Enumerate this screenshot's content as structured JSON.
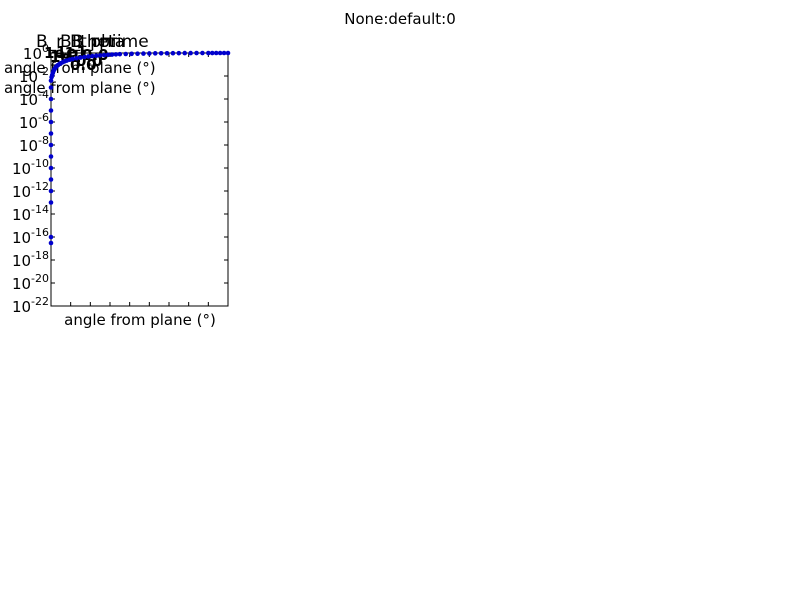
{
  "figure": {
    "suptitle": "None:default:0"
  },
  "overlap": {
    "titles": [
      "B_r",
      "B_phi",
      "B_theta",
      "B_rprime"
    ],
    "garbled_glyphs": [
      "1e1",
      "1e1",
      "1e1",
      "0.0",
      "0.0",
      "0.0"
    ],
    "ylabel_lines": [
      "angle from plane (°)",
      "angle from plane (°)"
    ]
  },
  "chart_data": {
    "type": "scatter",
    "title": "",
    "xlabel": "angle from plane (°)",
    "ylabel": "",
    "yscale": "log",
    "ylim_exponents": [
      -22,
      0
    ],
    "ytick_exponents": [
      0,
      -2,
      -4,
      -6,
      -8,
      -10,
      -12,
      -14,
      -16,
      -18,
      -20,
      -22
    ],
    "xlim": [
      0,
      90
    ],
    "grid": false,
    "colors": {
      "series": "#0000cc",
      "axes": "#000000"
    },
    "series": [
      {
        "x": [
          0.0,
          0.0,
          0.0,
          0.0,
          0.0,
          0.0,
          0.0,
          0.0,
          0.0,
          0.0,
          0.0,
          0.0,
          0.0,
          0.0,
          0.3,
          0.6,
          0.9,
          1.2,
          1.6,
          2.0,
          2.5,
          3.0,
          3.6,
          4.3,
          5.0,
          6.0,
          7.0,
          8.0,
          9.5,
          11,
          13,
          15,
          17,
          19,
          21,
          23,
          25,
          27,
          29,
          31,
          33,
          35,
          38,
          41,
          44,
          47,
          50,
          53,
          56,
          59,
          62,
          65,
          68,
          71,
          74,
          77,
          80,
          82,
          84,
          86,
          88,
          90
        ],
        "y": [
          3e-17,
          1e-16,
          1e-13,
          1e-12,
          1e-11,
          1e-10,
          1e-09,
          1e-08,
          1e-07,
          1e-06,
          1e-05,
          0.0001,
          0.001,
          0.004,
          0.008,
          0.012,
          0.018,
          0.025,
          0.035,
          0.045,
          0.06,
          0.075,
          0.09,
          0.11,
          0.13,
          0.16,
          0.19,
          0.22,
          0.26,
          0.3,
          0.35,
          0.4,
          0.45,
          0.5,
          0.54,
          0.58,
          0.62,
          0.66,
          0.7,
          0.73,
          0.76,
          0.79,
          0.82,
          0.85,
          0.87,
          0.89,
          0.91,
          0.93,
          0.94,
          0.95,
          0.96,
          0.97,
          0.98,
          0.985,
          0.99,
          0.993,
          0.995,
          0.997,
          0.998,
          0.999,
          1.0,
          1.0
        ]
      }
    ]
  }
}
